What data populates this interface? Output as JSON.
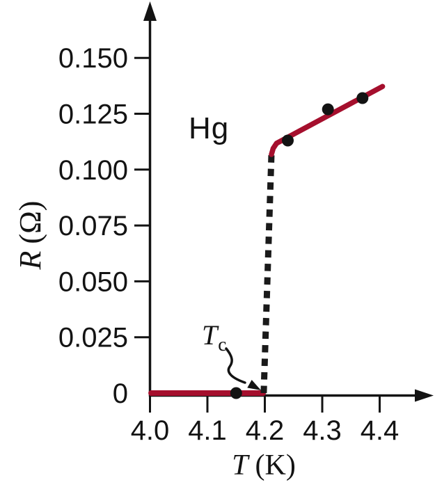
{
  "chart_data": {
    "type": "line",
    "material_label": "Hg",
    "xlabel": {
      "symbol": "T",
      "unit": "(K)"
    },
    "ylabel": {
      "symbol": "R",
      "unit": "(Ω)"
    },
    "xlim": [
      4.0,
      4.46
    ],
    "ylim": [
      0,
      0.168
    ],
    "grid": false,
    "legend": "none",
    "accent_color": "#a50f2d",
    "axis_color": "#131313",
    "x_ticks": [
      {
        "value": 4.0,
        "label": "4.0"
      },
      {
        "value": 4.1,
        "label": "4.1"
      },
      {
        "value": 4.2,
        "label": "4.2"
      },
      {
        "value": 4.3,
        "label": "4.3"
      },
      {
        "value": 4.4,
        "label": "4.4"
      }
    ],
    "y_ticks": [
      {
        "value": 0,
        "label": "0"
      },
      {
        "value": 0.025,
        "label": "0.025"
      },
      {
        "value": 0.05,
        "label": "0.050"
      },
      {
        "value": 0.075,
        "label": "0.075"
      },
      {
        "value": 0.1,
        "label": "0.100"
      },
      {
        "value": 0.125,
        "label": "0.125"
      },
      {
        "value": 0.15,
        "label": "0.150"
      }
    ],
    "critical_temperature": {
      "symbol": "T",
      "sub": "c",
      "value": 4.2
    },
    "series": [
      {
        "name": "superconducting-state",
        "style": "solid",
        "color": "#a50f2d",
        "width": 8,
        "points": [
          [
            4.002,
            0
          ],
          [
            4.197,
            0
          ]
        ]
      },
      {
        "name": "transition-jump",
        "style": "dashed",
        "color": "#1a1a1a",
        "width": 9,
        "points": [
          [
            4.198,
            0.0
          ],
          [
            4.2115,
            0.1068
          ]
        ]
      },
      {
        "name": "normal-state",
        "style": "solid",
        "color": "#a50f2d",
        "width": 7.5,
        "points": [
          [
            4.2115,
            0.1068
          ],
          [
            4.2145,
            0.1095
          ],
          [
            4.2205,
            0.1118
          ],
          [
            4.405,
            0.1372
          ]
        ]
      }
    ],
    "data_points": [
      {
        "T": 4.15,
        "R": 0
      },
      {
        "T": 4.24,
        "R": 0.113
      },
      {
        "T": 4.31,
        "R": 0.127
      },
      {
        "T": 4.37,
        "R": 0.132
      }
    ]
  }
}
